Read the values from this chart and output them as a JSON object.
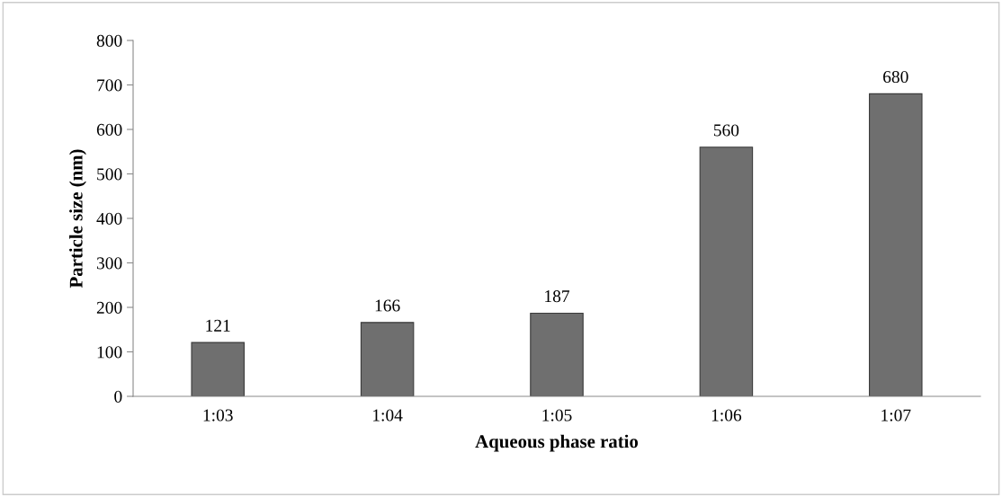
{
  "chart_data": {
    "type": "bar",
    "xlabel": "Aqueous phase ratio",
    "ylabel": "Particle size (nm)",
    "categories": [
      "1:03",
      "1:04",
      "1:05",
      "1:06",
      "1:07"
    ],
    "values": [
      121,
      166,
      187,
      560,
      680
    ],
    "color": "#6f6f6f",
    "ylim": [
      0,
      800
    ],
    "yticks": [
      0,
      100,
      200,
      300,
      400,
      500,
      600,
      700,
      800
    ],
    "data_labels": true,
    "grid": false,
    "legend": false
  }
}
